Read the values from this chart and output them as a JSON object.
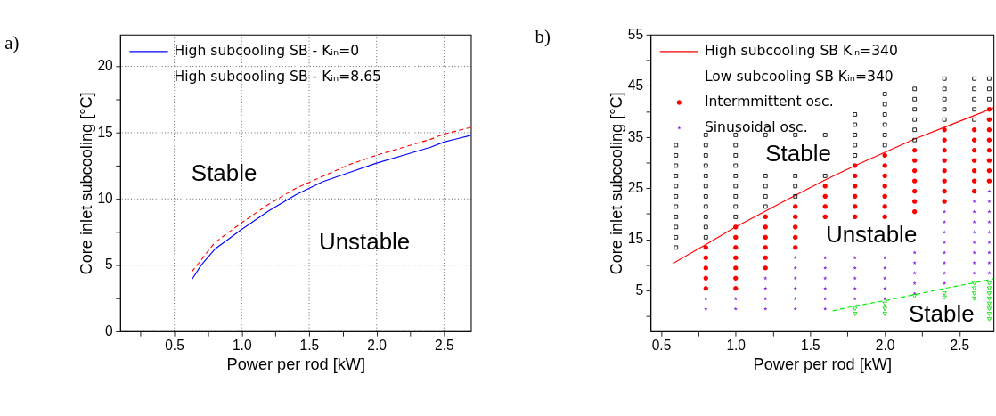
{
  "chart_data": [
    {
      "type": "line",
      "title": "a)",
      "xlabel": "Power per rod [kW]",
      "ylabel": "Core inlet subcooling [°C]",
      "xlim": [
        0.1,
        2.7
      ],
      "ylim": [
        0,
        22.4
      ],
      "xticks": [
        {
          "value": 0.25,
          "label": null
        },
        0.5,
        {
          "value": 0.75,
          "label": null
        },
        {
          "value": 1.0,
          "label": "1.0"
        },
        {
          "value": 1.25,
          "label": null
        },
        1.5,
        {
          "value": 1.75,
          "label": null
        },
        {
          "value": 2.0,
          "label": "2.0"
        },
        {
          "value": 2.25,
          "label": null
        },
        2.5
      ],
      "yticks": [
        0,
        {
          "value": 2.5,
          "label": null
        },
        5,
        {
          "value": 7.5,
          "label": null
        },
        10,
        {
          "value": 12.5,
          "label": null
        },
        15,
        {
          "value": 17.5,
          "label": null
        },
        20
      ],
      "grid": true,
      "legend": "top left",
      "annotations": [
        "Stable",
        "Unstable"
      ],
      "series": [
        {
          "name": "High subcooling SB - Kᵢₙ=0",
          "color": "#0000ff",
          "line_style": "solid",
          "x": [
            0.63,
            0.7,
            0.8,
            1.0,
            1.2,
            1.4,
            1.6,
            1.8,
            2.0,
            2.2,
            2.4,
            2.5,
            2.7
          ],
          "values": [
            3.9,
            5.0,
            6.2,
            7.7,
            9.1,
            10.3,
            11.3,
            12.0,
            12.7,
            13.3,
            13.9,
            14.3,
            14.8
          ]
        },
        {
          "name": "High subcooling SB - Kᵢₙ=8.65",
          "color": "#ff0000",
          "line_style": "dashed",
          "x": [
            0.63,
            0.7,
            0.8,
            1.0,
            1.2,
            1.4,
            1.6,
            1.8,
            2.0,
            2.2,
            2.4,
            2.5,
            2.7
          ],
          "values": [
            4.5,
            5.4,
            6.7,
            8.2,
            9.6,
            10.8,
            11.7,
            12.6,
            13.3,
            13.9,
            14.5,
            14.9,
            15.4
          ]
        }
      ]
    },
    {
      "type": "scatter",
      "title": "b)",
      "xlabel": "Power per rod [kW]",
      "ylabel": "Core inlet subcooling [°C]",
      "xlim": [
        0.43,
        2.73
      ],
      "ylim": [
        -3,
        55
      ],
      "xticks": [
        0.5,
        {
          "value": 0.75,
          "label": null
        },
        {
          "value": 1.0,
          "label": "1.0"
        },
        {
          "value": 1.25,
          "label": null
        },
        1.5,
        {
          "value": 1.75,
          "label": null
        },
        {
          "value": 2.0,
          "label": "2.0"
        },
        {
          "value": 2.25,
          "label": null
        },
        2.5
      ],
      "yticks": [
        {
          "value": 0,
          "label": null
        },
        5,
        {
          "value": 10,
          "label": null
        },
        15,
        {
          "value": 20,
          "label": null
        },
        25,
        {
          "value": 30,
          "label": null
        },
        35,
        {
          "value": 40,
          "label": null
        },
        45,
        {
          "value": 50,
          "label": null
        },
        55
      ],
      "legend": "top left",
      "annotations": [
        "Stable",
        "Unstable",
        "Stable"
      ],
      "series": [
        {
          "type": "line",
          "name": "High subcooling SB Kᵢₙ=340",
          "color": "#ff0000",
          "line_style": "solid",
          "x": [
            0.58,
            0.8,
            1.0,
            1.2,
            1.4,
            1.6,
            1.8,
            2.0,
            2.2,
            2.4,
            2.6,
            2.73
          ],
          "values": [
            10.3,
            14.0,
            17.4,
            20.5,
            23.6,
            26.6,
            29.4,
            32.0,
            34.6,
            36.9,
            39.2,
            40.7
          ]
        },
        {
          "type": "line",
          "name": "Low subcooling SB  Kᵢₙ=340",
          "color": "#00ee00",
          "line_style": "dashed",
          "x": [
            1.65,
            1.8,
            2.0,
            2.2,
            2.4,
            2.6,
            2.73
          ],
          "values": [
            1.0,
            2.0,
            3.0,
            4.2,
            5.4,
            6.5,
            7.3
          ]
        },
        {
          "type": "scatter",
          "color": "#000000",
          "marker": "square",
          "x": [
            0.6,
            0.6,
            0.6,
            0.6,
            0.6,
            0.6,
            0.6,
            0.6,
            0.6,
            0.6,
            0.6,
            0.8,
            0.8,
            0.8,
            0.8,
            0.8,
            0.8,
            0.8,
            0.8,
            0.8,
            0.8,
            0.8,
            1.0,
            1.0,
            1.0,
            1.0,
            1.0,
            1.0,
            1.0,
            1.0,
            1.0,
            1.2,
            1.2,
            1.2,
            1.2,
            1.2,
            1.4,
            1.4,
            1.4,
            1.4,
            1.6,
            1.6,
            1.8,
            1.8,
            1.8,
            1.8,
            1.8,
            2.0,
            2.0,
            2.0,
            2.0,
            2.0,
            2.0,
            2.2,
            2.2,
            2.2,
            2.2,
            2.2,
            2.2,
            2.4,
            2.4,
            2.4,
            2.4,
            2.4,
            2.6,
            2.6,
            2.6,
            2.6,
            2.6,
            2.7,
            2.7,
            2.7
          ],
          "values": [
            13.4,
            15.4,
            17.4,
            19.4,
            21.4,
            23.4,
            25.4,
            27.4,
            29.4,
            31.4,
            33.4,
            15.4,
            17.4,
            19.4,
            21.4,
            23.4,
            25.4,
            27.4,
            29.4,
            31.4,
            33.4,
            35.4,
            19.4,
            21.4,
            23.4,
            25.4,
            27.4,
            29.4,
            31.4,
            33.4,
            35.4,
            21.4,
            23.4,
            25.4,
            27.4,
            35.4,
            23.4,
            25.4,
            27.4,
            35.4,
            27.4,
            35.4,
            31.4,
            33.4,
            35.4,
            37.4,
            39.4,
            33.4,
            35.4,
            37.4,
            39.4,
            41.4,
            43.4,
            34.4,
            36.4,
            38.4,
            40.4,
            42.4,
            44.4,
            38.4,
            40.4,
            42.4,
            44.4,
            46.4,
            38.4,
            40.4,
            42.4,
            44.4,
            46.4,
            42.4,
            44.4,
            46.4
          ]
        },
        {
          "type": "scatter",
          "name": "Intermmittent osc.",
          "color": "#ff0000",
          "marker": "circle",
          "x": [
            0.8,
            0.8,
            0.8,
            0.8,
            0.8,
            1.0,
            1.0,
            1.0,
            1.0,
            1.0,
            1.0,
            1.0,
            1.2,
            1.2,
            1.2,
            1.2,
            1.2,
            1.2,
            1.4,
            1.4,
            1.4,
            1.4,
            1.4,
            1.6,
            1.6,
            1.6,
            1.6,
            1.8,
            1.8,
            1.8,
            1.8,
            1.8,
            1.8,
            2.0,
            2.0,
            2.0,
            2.0,
            2.0,
            2.0,
            2.0,
            2.2,
            2.2,
            2.2,
            2.2,
            2.2,
            2.2,
            2.2,
            2.4,
            2.4,
            2.4,
            2.4,
            2.4,
            2.4,
            2.4,
            2.4,
            2.6,
            2.6,
            2.6,
            2.6,
            2.6,
            2.6,
            2.6,
            2.7,
            2.7,
            2.7,
            2.7,
            2.7,
            2.7,
            2.7,
            2.7
          ],
          "values": [
            5.4,
            7.4,
            9.4,
            11.4,
            13.4,
            5.4,
            7.4,
            9.4,
            11.4,
            13.4,
            15.4,
            17.4,
            9.4,
            11.4,
            13.4,
            15.4,
            17.4,
            19.4,
            13.4,
            15.4,
            17.4,
            19.4,
            21.4,
            19.4,
            21.4,
            23.4,
            25.4,
            19.4,
            21.4,
            23.4,
            25.4,
            27.4,
            29.4,
            19.4,
            21.4,
            23.4,
            25.4,
            27.4,
            29.4,
            31.4,
            20.4,
            22.4,
            24.4,
            26.4,
            28.4,
            30.4,
            32.4,
            22.4,
            24.4,
            26.4,
            28.4,
            30.4,
            32.4,
            34.4,
            36.4,
            24.4,
            26.4,
            28.4,
            30.4,
            32.4,
            34.4,
            36.4,
            26.4,
            28.4,
            30.4,
            32.4,
            34.4,
            36.4,
            38.4,
            40.4
          ]
        },
        {
          "type": "scatter",
          "name": "Sinusoidal osc.",
          "color": "#8a2be2",
          "marker": "star",
          "x": [
            0.8,
            0.8,
            1.0,
            1.0,
            1.2,
            1.2,
            1.2,
            1.2,
            1.4,
            1.4,
            1.4,
            1.4,
            1.4,
            1.4,
            1.6,
            1.6,
            1.6,
            1.6,
            1.6,
            1.6,
            1.8,
            1.8,
            1.8,
            1.8,
            1.8,
            2.0,
            2.0,
            2.0,
            2.0,
            2.0,
            2.2,
            2.2,
            2.2,
            2.2,
            2.2,
            2.4,
            2.4,
            2.4,
            2.4,
            2.4,
            2.4,
            2.4,
            2.4,
            2.6,
            2.6,
            2.6,
            2.6,
            2.6,
            2.6,
            2.6,
            2.6,
            2.7,
            2.7,
            2.7,
            2.7,
            2.7,
            2.7,
            2.7,
            2.7,
            2.7
          ],
          "values": [
            1.4,
            3.4,
            1.4,
            3.4,
            1.4,
            3.4,
            5.4,
            7.4,
            1.4,
            3.4,
            5.4,
            7.4,
            9.4,
            11.4,
            1.4,
            3.4,
            5.4,
            7.4,
            9.4,
            11.4,
            3.4,
            5.4,
            7.4,
            9.4,
            11.4,
            3.4,
            5.4,
            7.4,
            9.4,
            11.4,
            4.4,
            6.4,
            8.4,
            10.4,
            12.4,
            6.4,
            8.4,
            10.4,
            12.4,
            14.4,
            16.4,
            18.4,
            20.4,
            8.4,
            10.4,
            12.4,
            14.4,
            16.4,
            18.4,
            20.4,
            22.4,
            8.4,
            10.4,
            12.4,
            14.4,
            16.4,
            18.4,
            20.4,
            22.4,
            24.4
          ]
        },
        {
          "type": "scatter",
          "color": "#00dd00",
          "marker": "triangle",
          "x": [
            1.8,
            1.8,
            2.0,
            2.0,
            2.0,
            2.2,
            2.4,
            2.4,
            2.6,
            2.6,
            2.6,
            2.6,
            2.7,
            2.7,
            2.7,
            2.7,
            2.7,
            2.7,
            2.7,
            2.7
          ],
          "values": [
            1.4,
            0.4,
            2.4,
            1.4,
            0.4,
            3.9,
            4.4,
            3.6,
            6.4,
            5.4,
            4.4,
            3.4,
            6.4,
            5.4,
            4.4,
            3.4,
            2.4,
            1.4,
            0.4,
            -0.6
          ]
        }
      ]
    }
  ]
}
